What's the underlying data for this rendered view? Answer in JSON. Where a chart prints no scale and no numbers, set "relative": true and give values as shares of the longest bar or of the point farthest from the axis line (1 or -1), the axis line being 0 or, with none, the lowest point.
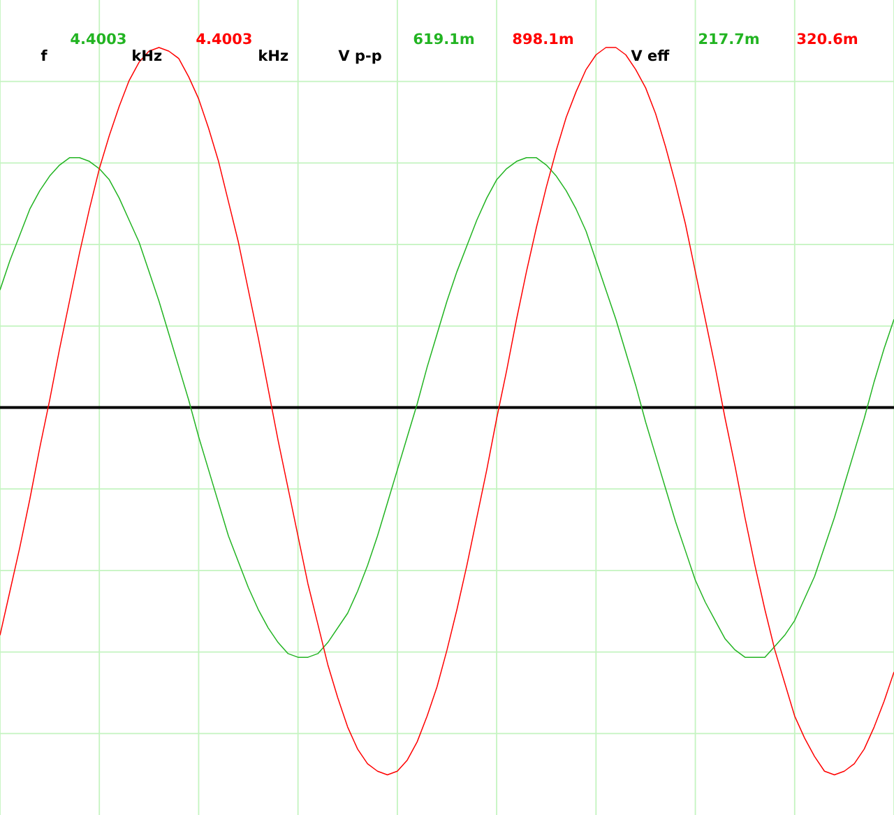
{
  "chart_data": {
    "type": "line",
    "relative": true,
    "grid": true,
    "categories": [
      null,
      null,
      null,
      null,
      null,
      null,
      null,
      null,
      null,
      null,
      null,
      null,
      null,
      null,
      null,
      null,
      null,
      null,
      null,
      null,
      null,
      null,
      null,
      null,
      null,
      null,
      null,
      null,
      null,
      null,
      null,
      null,
      null,
      null,
      null,
      null,
      null,
      null,
      null,
      null,
      null,
      null,
      null,
      null,
      null,
      null,
      null,
      null,
      null,
      null,
      null,
      null,
      null,
      null,
      null,
      null,
      null,
      null,
      null,
      null,
      null,
      null,
      null,
      null,
      null,
      null,
      null,
      null,
      null,
      null,
      null,
      null,
      null,
      null,
      null,
      null,
      null,
      null,
      null,
      null,
      null,
      null,
      null,
      null,
      null,
      null,
      null,
      null,
      null,
      null,
      null
    ],
    "series": [
      {
        "color": "#22b422",
        "values": [
          0.32,
          0.4,
          0.47,
          0.54,
          0.59,
          0.63,
          0.66,
          0.68,
          0.68,
          0.67,
          0.65,
          0.62,
          0.57,
          0.51,
          0.45,
          0.37,
          0.29,
          0.2,
          0.11,
          0.02,
          -0.08,
          -0.17,
          -0.26,
          -0.35,
          -0.42,
          -0.49,
          -0.55,
          -0.6,
          -0.64,
          -0.67,
          -0.68,
          -0.68,
          -0.67,
          -0.64,
          -0.6,
          -0.56,
          -0.5,
          -0.43,
          -0.35,
          -0.26,
          -0.17,
          -0.08,
          0.01,
          0.11,
          0.2,
          0.29,
          0.37,
          0.44,
          0.51,
          0.57,
          0.62,
          0.65,
          0.67,
          0.68,
          0.68,
          0.66,
          0.63,
          0.59,
          0.54,
          0.48,
          0.4,
          0.32,
          0.24,
          0.15,
          0.06,
          -0.04,
          -0.13,
          -0.22,
          -0.31,
          -0.39,
          -0.47,
          -0.53,
          -0.58,
          -0.63,
          -0.66,
          -0.68,
          -0.68,
          -0.68,
          -0.65,
          -0.62,
          -0.58,
          -0.52,
          -0.46,
          -0.38,
          -0.3,
          -0.21,
          -0.12,
          -0.03,
          0.07,
          0.16,
          0.24
        ]
      },
      {
        "color": "#ff0000",
        "values": [
          -0.62,
          -0.5,
          -0.38,
          -0.25,
          -0.11,
          0.02,
          0.16,
          0.29,
          0.42,
          0.54,
          0.65,
          0.74,
          0.82,
          0.89,
          0.94,
          0.97,
          0.98,
          0.97,
          0.95,
          0.9,
          0.84,
          0.76,
          0.67,
          0.56,
          0.45,
          0.32,
          0.19,
          0.05,
          -0.09,
          -0.22,
          -0.35,
          -0.48,
          -0.59,
          -0.7,
          -0.79,
          -0.87,
          -0.93,
          -0.97,
          -0.99,
          -1.0,
          -0.99,
          -0.96,
          -0.91,
          -0.84,
          -0.76,
          -0.66,
          -0.55,
          -0.43,
          -0.3,
          -0.17,
          -0.03,
          0.1,
          0.24,
          0.37,
          0.49,
          0.6,
          0.7,
          0.79,
          0.86,
          0.92,
          0.96,
          0.98,
          0.98,
          0.96,
          0.92,
          0.87,
          0.8,
          0.71,
          0.61,
          0.5,
          0.37,
          0.24,
          0.11,
          -0.03,
          -0.16,
          -0.3,
          -0.43,
          -0.55,
          -0.66,
          -0.75,
          -0.84,
          -0.9,
          -0.95,
          -0.99,
          -1.0,
          -0.99,
          -0.97,
          -0.93,
          -0.87,
          -0.8,
          -0.72
        ]
      }
    ],
    "annotations": [
      "f",
      "4.4003",
      "kHz",
      "4.4003",
      "kHz",
      "V p-p",
      "619.1m",
      "898.1m",
      "V eff",
      "217.7m",
      "320.6m"
    ]
  }
}
